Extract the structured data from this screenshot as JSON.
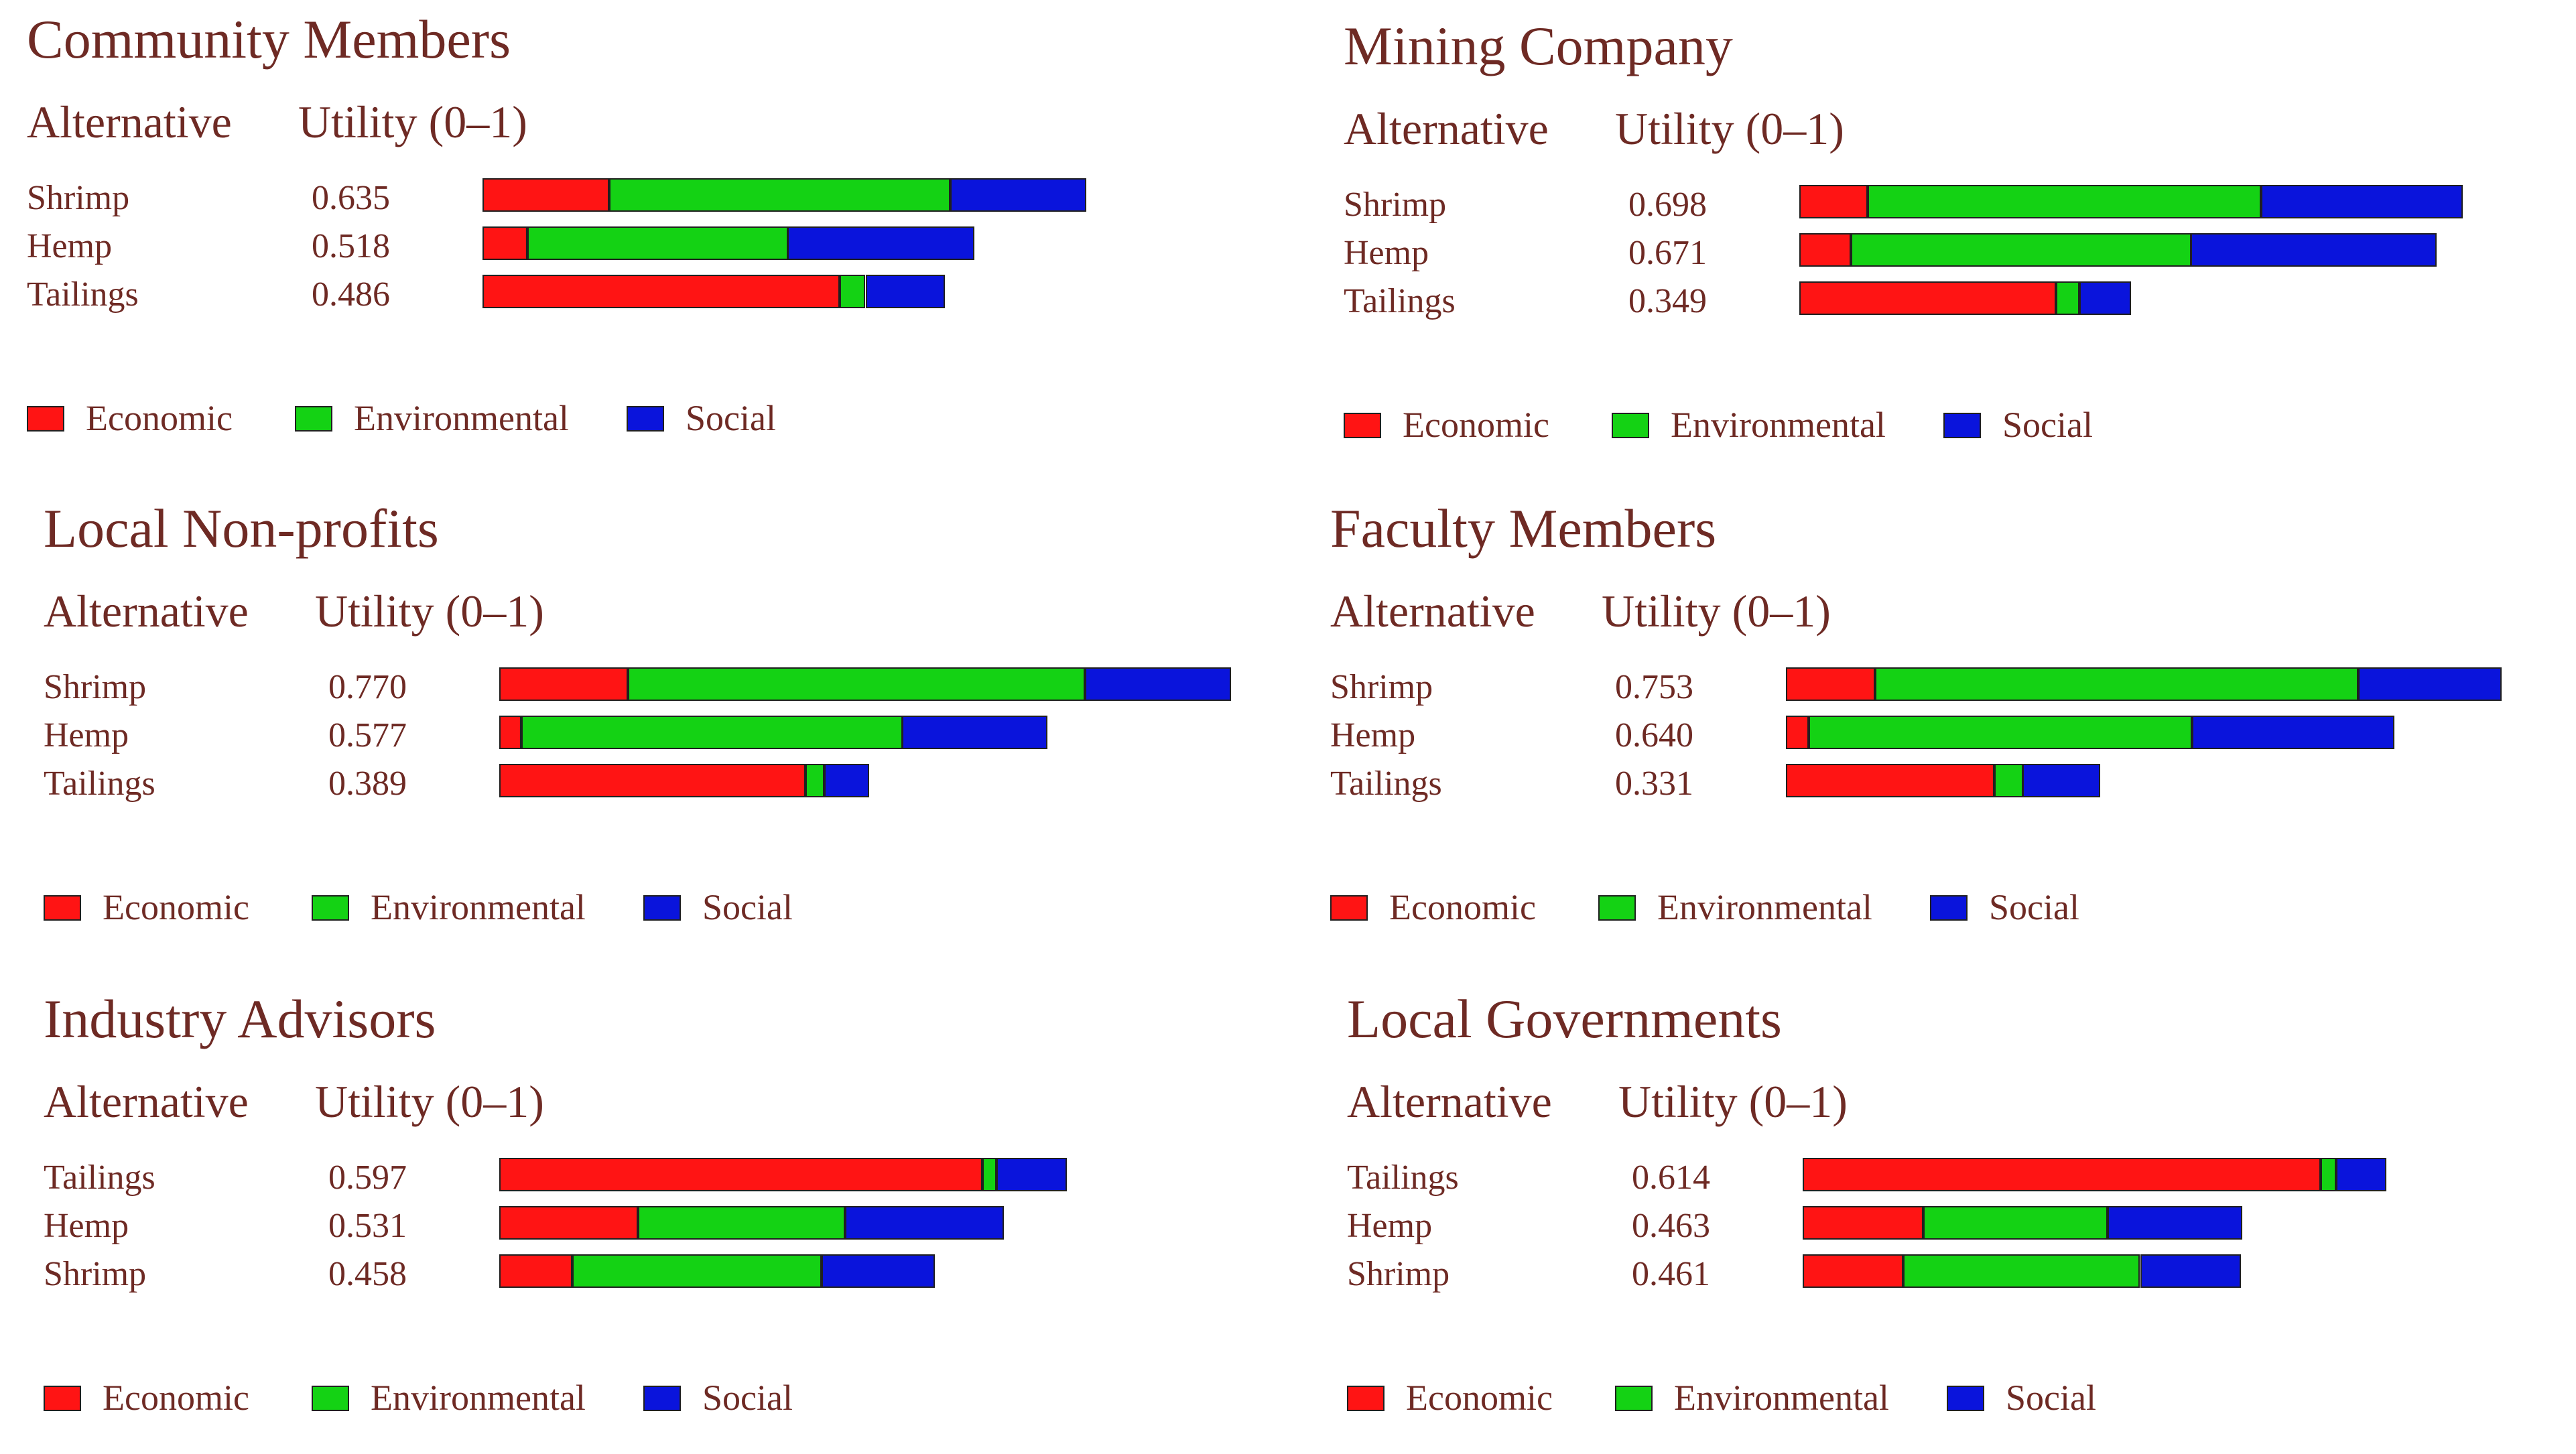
{
  "colors": {
    "Economic": "#ff1414",
    "Environmental": "#14d214",
    "Social": "#0a14dc"
  },
  "headers": {
    "alternative": "Alternative",
    "utility": "Utility (0–1)"
  },
  "legend": [
    "Economic",
    "Environmental",
    "Social"
  ],
  "chart_data": [
    {
      "type": "bar",
      "stacked": true,
      "orientation": "horizontal",
      "title": "Community Members",
      "categories": [
        "Shrimp",
        "Hemp",
        "Tailings"
      ],
      "utility_labels": [
        "0.635",
        "0.518",
        "0.486"
      ],
      "series": [
        {
          "name": "Economic",
          "values": [
            0.133,
            0.047,
            0.376
          ]
        },
        {
          "name": "Environmental",
          "values": [
            0.359,
            0.274,
            0.027
          ]
        },
        {
          "name": "Social",
          "values": [
            0.143,
            0.197,
            0.083
          ]
        }
      ],
      "xlim": [
        0,
        0.86
      ]
    },
    {
      "type": "bar",
      "stacked": true,
      "orientation": "horizontal",
      "title": "Mining Company",
      "categories": [
        "Shrimp",
        "Hemp",
        "Tailings"
      ],
      "utility_labels": [
        "0.698",
        "0.671",
        "0.349"
      ],
      "series": [
        {
          "name": "Economic",
          "values": [
            0.072,
            0.054,
            0.27
          ]
        },
        {
          "name": "Environmental",
          "values": [
            0.414,
            0.358,
            0.025
          ]
        },
        {
          "name": "Social",
          "values": [
            0.212,
            0.259,
            0.054
          ]
        }
      ],
      "xlim": [
        0,
        0.86
      ]
    },
    {
      "type": "bar",
      "stacked": true,
      "orientation": "horizontal",
      "title": "Local Non-profits",
      "categories": [
        "Shrimp",
        "Hemp",
        "Tailings"
      ],
      "utility_labels": [
        "0.770",
        "0.577",
        "0.389"
      ],
      "series": [
        {
          "name": "Economic",
          "values": [
            0.135,
            0.023,
            0.322
          ]
        },
        {
          "name": "Environmental",
          "values": [
            0.481,
            0.401,
            0.02
          ]
        },
        {
          "name": "Social",
          "values": [
            0.154,
            0.153,
            0.047
          ]
        }
      ],
      "xlim": [
        0,
        0.86
      ]
    },
    {
      "type": "bar",
      "stacked": true,
      "orientation": "horizontal",
      "title": "Faculty Members",
      "categories": [
        "Shrimp",
        "Hemp",
        "Tailings"
      ],
      "utility_labels": [
        "0.753",
        "0.640",
        "0.331"
      ],
      "series": [
        {
          "name": "Economic",
          "values": [
            0.094,
            0.024,
            0.219
          ]
        },
        {
          "name": "Environmental",
          "values": [
            0.508,
            0.403,
            0.03
          ]
        },
        {
          "name": "Social",
          "values": [
            0.151,
            0.213,
            0.082
          ]
        }
      ],
      "xlim": [
        0,
        0.86
      ]
    },
    {
      "type": "bar",
      "stacked": true,
      "orientation": "horizontal",
      "title": "Industry Advisors",
      "categories": [
        "Tailings",
        "Hemp",
        "Shrimp"
      ],
      "utility_labels": [
        "0.597",
        "0.531",
        "0.458"
      ],
      "series": [
        {
          "name": "Economic",
          "values": [
            0.508,
            0.146,
            0.077
          ]
        },
        {
          "name": "Environmental",
          "values": [
            0.015,
            0.218,
            0.262
          ]
        },
        {
          "name": "Social",
          "values": [
            0.074,
            0.167,
            0.119
          ]
        }
      ],
      "xlim": [
        0,
        0.86
      ]
    },
    {
      "type": "bar",
      "stacked": true,
      "orientation": "horizontal",
      "title": "Local Governments",
      "categories": [
        "Tailings",
        "Hemp",
        "Shrimp"
      ],
      "utility_labels": [
        "0.614",
        "0.463",
        "0.461"
      ],
      "series": [
        {
          "name": "Economic",
          "values": [
            0.545,
            0.127,
            0.106
          ]
        },
        {
          "name": "Environmental",
          "values": [
            0.016,
            0.194,
            0.249
          ]
        },
        {
          "name": "Social",
          "values": [
            0.053,
            0.142,
            0.106
          ]
        }
      ],
      "xlim": [
        0,
        0.86
      ]
    }
  ]
}
